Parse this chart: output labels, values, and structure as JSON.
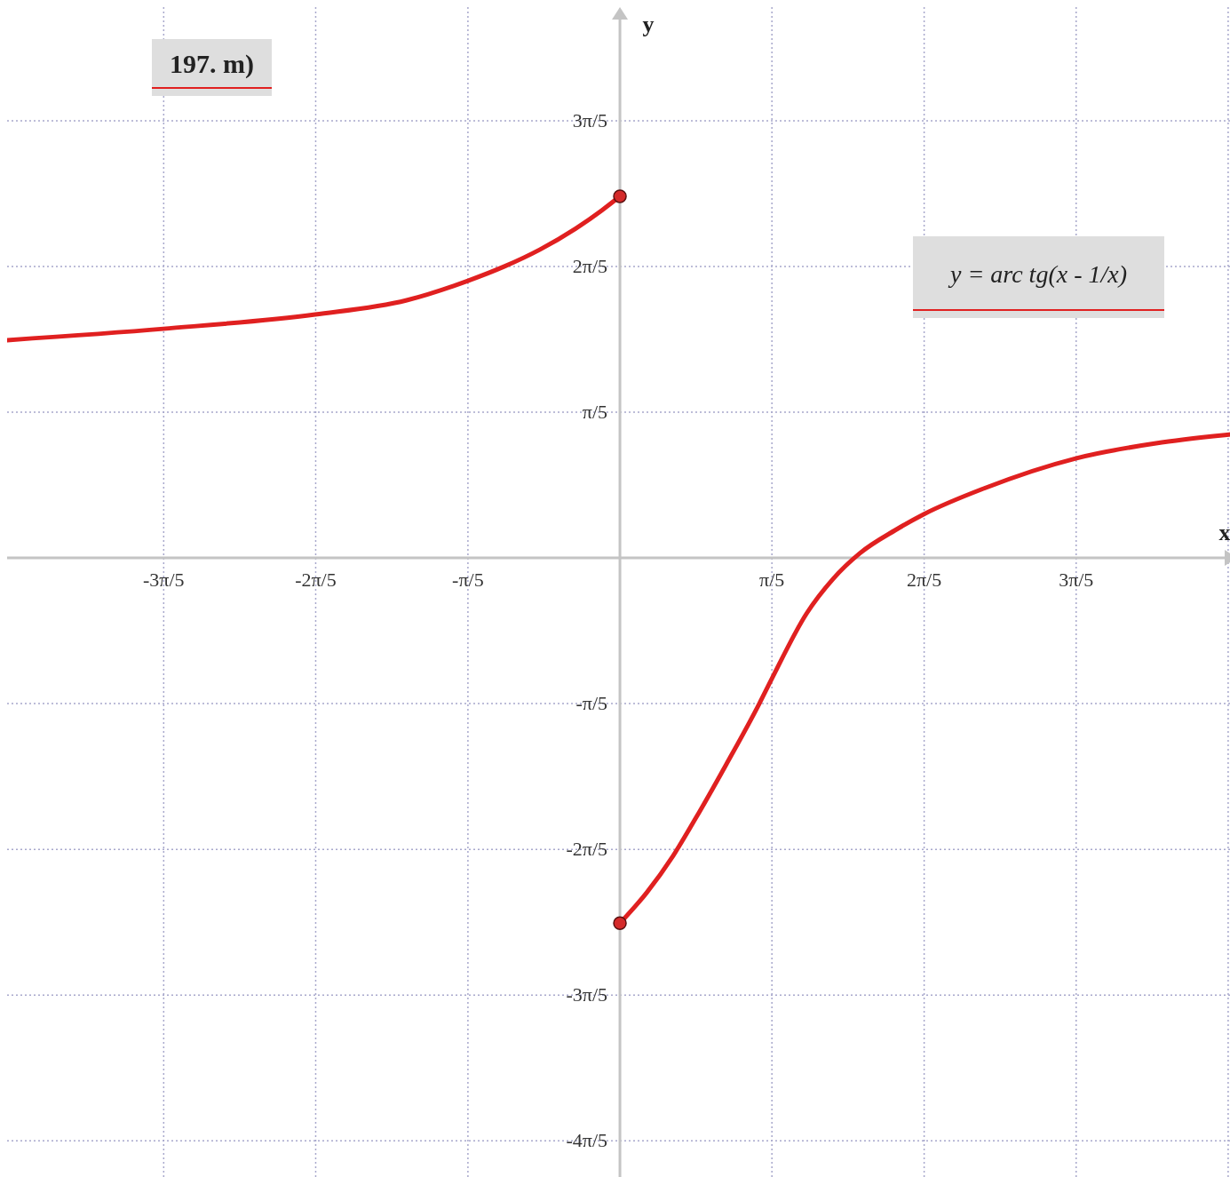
{
  "chart_data": {
    "type": "line",
    "xlabel": "x",
    "ylabel": "y",
    "annotations": [
      "197. m)",
      "y = arc tg(x - 1/x)"
    ],
    "xlim": [
      -2.532,
      2.55
    ],
    "ylim": [
      -2.7,
      2.375
    ],
    "xticks": [
      {
        "value": -1.885,
        "label": "-3π/5"
      },
      {
        "value": -1.257,
        "label": "-2π/5"
      },
      {
        "value": -0.628,
        "label": "-π/5"
      },
      {
        "value": 0.628,
        "label": "π/5"
      },
      {
        "value": 1.257,
        "label": "2π/5"
      },
      {
        "value": 1.885,
        "label": "3π/5"
      },
      {
        "value": 2.513,
        "label": null
      }
    ],
    "yticks": [
      {
        "value": -2.513,
        "label": "-4π/5"
      },
      {
        "value": -1.885,
        "label": "-3π/5"
      },
      {
        "value": -1.257,
        "label": "-2π/5"
      },
      {
        "value": -0.628,
        "label": "-π/5"
      },
      {
        "value": 0.628,
        "label": "π/5"
      },
      {
        "value": 1.257,
        "label": "2π/5"
      },
      {
        "value": 1.885,
        "label": "3π/5"
      }
    ],
    "grid": true,
    "series": [
      {
        "color": "#e02020",
        "x": [
          -2.532,
          -1.886,
          -1.259,
          -0.881,
          -0.628,
          -0.477,
          -0.33,
          -0.183,
          -0.073,
          0
        ],
        "values": [
          0.939,
          0.988,
          1.05,
          1.111,
          1.195,
          1.257,
          1.33,
          1.42,
          1.5,
          1.559
        ]
      },
      {
        "color": "#e02020",
        "x": [
          0,
          0.11,
          0.22,
          0.33,
          0.44,
          0.576,
          0.628,
          0.771,
          0.881,
          0.991,
          1.138,
          1.255,
          1.505,
          1.883,
          2.239,
          2.55
        ],
        "values": [
          -1.575,
          -1.444,
          -1.284,
          -1.092,
          -0.889,
          -0.628,
          -0.52,
          -0.24,
          -0.09,
          0.02,
          0.12,
          0.188,
          0.3,
          0.429,
          0.498,
          0.536
        ]
      },
      {
        "type": "scatter",
        "color": "#d42a2a",
        "marker": "circle",
        "x": [
          0,
          0
        ],
        "values": [
          1.559,
          -1.575
        ]
      }
    ]
  }
}
